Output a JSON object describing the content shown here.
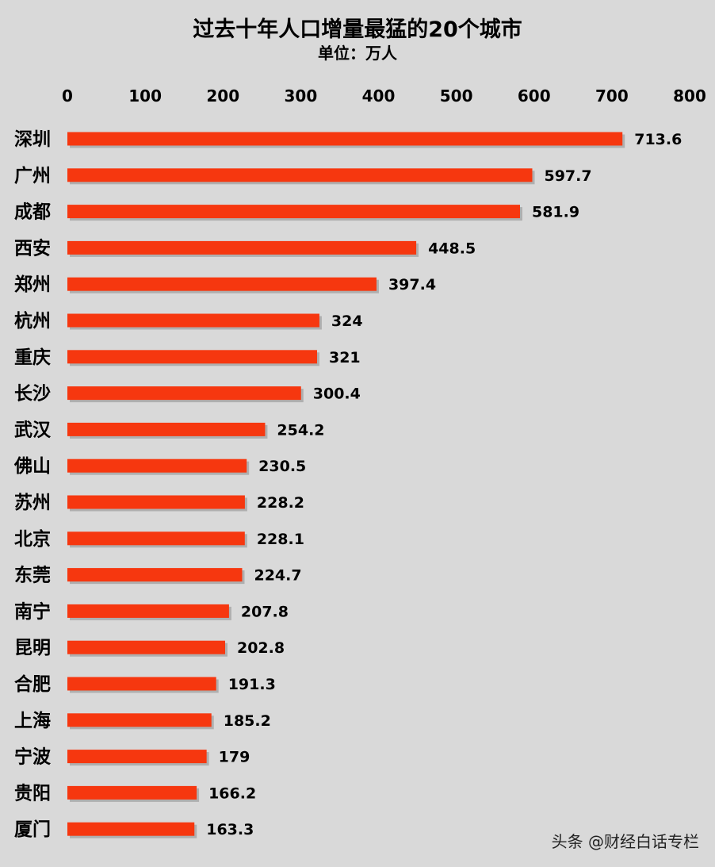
{
  "chart_data": {
    "type": "bar",
    "orientation": "horizontal",
    "title": "过去十年人口增量最猛的20个城市",
    "subtitle": "单位：万人",
    "categories": [
      "深圳",
      "广州",
      "成都",
      "西安",
      "郑州",
      "杭州",
      "重庆",
      "长沙",
      "武汉",
      "佛山",
      "苏州",
      "北京",
      "东莞",
      "南宁",
      "昆明",
      "合肥",
      "上海",
      "宁波",
      "贵阳",
      "厦门"
    ],
    "values": [
      713.6,
      597.7,
      581.9,
      448.5,
      397.4,
      324,
      321,
      300.4,
      254.2,
      230.5,
      228.2,
      228.1,
      224.7,
      207.8,
      202.8,
      191.3,
      185.2,
      179,
      166.2,
      163.3
    ],
    "value_labels": [
      "713.6",
      "597.7",
      "581.9",
      "448.5",
      "397.4",
      "324",
      "321",
      "300.4",
      "254.2",
      "230.5",
      "228.2",
      "228.1",
      "224.7",
      "207.8",
      "202.8",
      "191.3",
      "185.2",
      "179",
      "166.2",
      "163.3"
    ],
    "xlim": [
      0,
      800
    ],
    "xticks": [
      0,
      100,
      200,
      300,
      400,
      500,
      600,
      700,
      800
    ],
    "axis_position": "top",
    "grid": false,
    "colors": {
      "bar": "#f6370f",
      "background": "#d9d9d9",
      "shadow": "#8c8c8c"
    }
  },
  "watermark": "头条 @财经白话专栏"
}
